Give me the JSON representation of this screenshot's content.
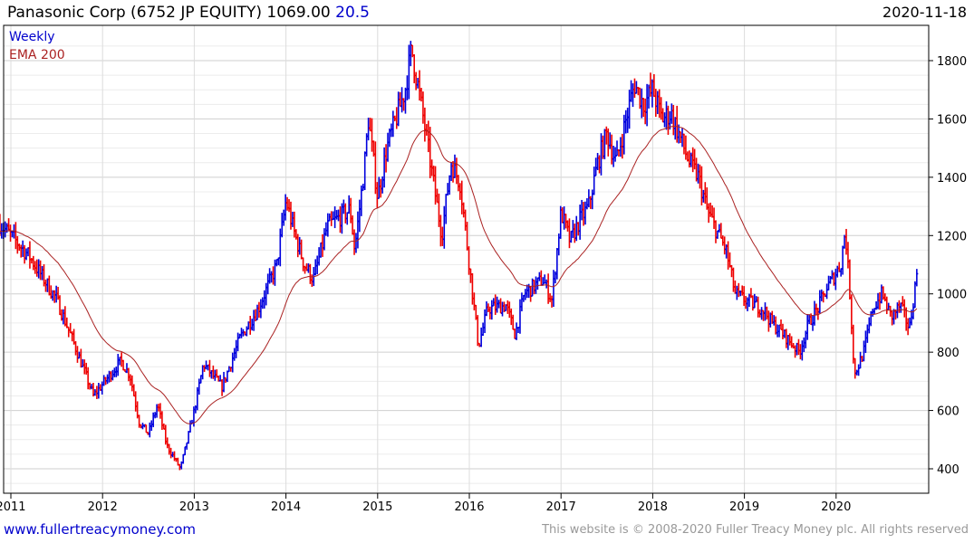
{
  "header": {
    "title": "Panasonic Corp (6752 JP EQUITY) 1069.00",
    "change": "20.5",
    "date": "2020-11-18"
  },
  "footer": {
    "link": "www.fullertreacymoney.com",
    "copyright": "This website is © 2008-2020 Fuller Treacy Money plc. All rights reserved"
  },
  "colors": {
    "up": "#0000dd",
    "down": "#ee0000",
    "ema": "#aa2222",
    "grid": "#dddddd"
  },
  "chart_data": {
    "type": "ohlc",
    "title": "Panasonic Corp (6752 JP EQUITY)",
    "legend": [
      "Weekly",
      "EMA 200"
    ],
    "legend_position": "top-left",
    "ylim": [
      320,
      1900
    ],
    "yticks": [
      400,
      600,
      800,
      1000,
      1200,
      1400,
      1600,
      1800
    ],
    "xticks": [
      "2011",
      "2012",
      "2013",
      "2014",
      "2015",
      "2016",
      "2017",
      "2018",
      "2019",
      "2020"
    ],
    "xrange": [
      2010.88,
      2020.88
    ],
    "grid": true,
    "price_path": [
      [
        2010.88,
        1240
      ],
      [
        2011.0,
        1200
      ],
      [
        2011.2,
        1130
      ],
      [
        2011.5,
        980
      ],
      [
        2011.7,
        820
      ],
      [
        2011.9,
        650
      ],
      [
        2012.2,
        770
      ],
      [
        2012.3,
        720
      ],
      [
        2012.4,
        560
      ],
      [
        2012.5,
        520
      ],
      [
        2012.6,
        620
      ],
      [
        2012.7,
        480
      ],
      [
        2012.85,
        400
      ],
      [
        2013.0,
        600
      ],
      [
        2013.1,
        760
      ],
      [
        2013.3,
        680
      ],
      [
        2013.5,
        850
      ],
      [
        2013.7,
        950
      ],
      [
        2013.9,
        1100
      ],
      [
        2014.0,
        1320
      ],
      [
        2014.1,
        1200
      ],
      [
        2014.2,
        1100
      ],
      [
        2014.3,
        1050
      ],
      [
        2014.45,
        1230
      ],
      [
        2014.7,
        1290
      ],
      [
        2014.75,
        1150
      ],
      [
        2014.85,
        1420
      ],
      [
        2014.9,
        1600
      ],
      [
        2015.0,
        1330
      ],
      [
        2015.1,
        1500
      ],
      [
        2015.3,
        1700
      ],
      [
        2015.37,
        1840
      ],
      [
        2015.5,
        1600
      ],
      [
        2015.6,
        1400
      ],
      [
        2015.7,
        1200
      ],
      [
        2015.8,
        1450
      ],
      [
        2015.9,
        1380
      ],
      [
        2016.0,
        1100
      ],
      [
        2016.1,
        820
      ],
      [
        2016.2,
        950
      ],
      [
        2016.4,
        960
      ],
      [
        2016.5,
        860
      ],
      [
        2016.6,
        1000
      ],
      [
        2016.8,
        1050
      ],
      [
        2016.9,
        980
      ],
      [
        2017.0,
        1280
      ],
      [
        2017.1,
        1180
      ],
      [
        2017.2,
        1250
      ],
      [
        2017.3,
        1300
      ],
      [
        2017.4,
        1450
      ],
      [
        2017.5,
        1550
      ],
      [
        2017.6,
        1450
      ],
      [
        2017.8,
        1720
      ],
      [
        2017.9,
        1650
      ],
      [
        2018.0,
        1700
      ],
      [
        2018.1,
        1600
      ],
      [
        2018.2,
        1620
      ],
      [
        2018.4,
        1450
      ],
      [
        2018.5,
        1400
      ],
      [
        2018.6,
        1280
      ],
      [
        2018.8,
        1150
      ],
      [
        2018.9,
        1000
      ],
      [
        2019.0,
        980
      ],
      [
        2019.2,
        950
      ],
      [
        2019.3,
        900
      ],
      [
        2019.4,
        870
      ],
      [
        2019.6,
        800
      ],
      [
        2019.7,
        900
      ],
      [
        2019.8,
        950
      ],
      [
        2019.9,
        1020
      ],
      [
        2020.05,
        1100
      ],
      [
        2020.1,
        1220
      ],
      [
        2020.15,
        1000
      ],
      [
        2020.2,
        720
      ],
      [
        2020.3,
        800
      ],
      [
        2020.4,
        950
      ],
      [
        2020.5,
        1000
      ],
      [
        2020.6,
        920
      ],
      [
        2020.7,
        960
      ],
      [
        2020.8,
        880
      ],
      [
        2020.88,
        1069
      ]
    ],
    "last": 1069.0
  }
}
